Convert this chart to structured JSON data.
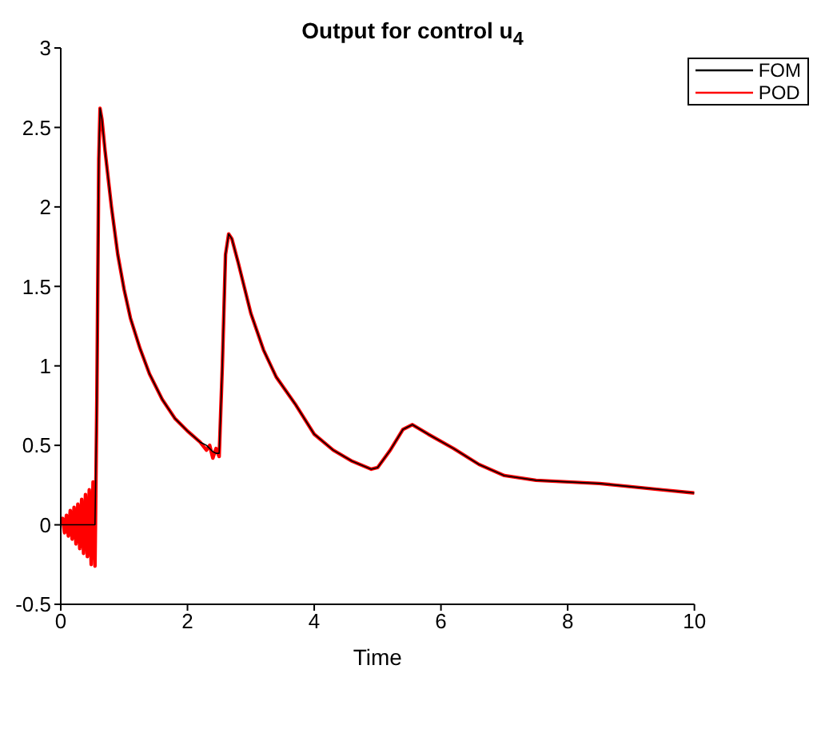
{
  "chart_data": {
    "type": "line",
    "title": "Output for control u$_{4}$",
    "xlabel": "Time",
    "x": [
      0,
      0.03,
      0.06,
      0.09,
      0.12,
      0.15,
      0.18,
      0.21,
      0.24,
      0.27,
      0.3,
      0.33,
      0.36,
      0.39,
      0.42,
      0.45,
      0.48,
      0.51,
      0.54,
      0.57,
      0.6,
      0.62,
      0.65,
      0.7,
      0.8,
      0.9,
      1.0,
      1.1,
      1.25,
      1.4,
      1.6,
      1.8,
      2.0,
      2.2,
      2.3,
      2.35,
      2.4,
      2.45,
      2.5,
      2.55,
      2.6,
      2.65,
      2.7,
      2.8,
      3.0,
      3.2,
      3.4,
      3.7,
      4.0,
      4.3,
      4.6,
      4.9,
      5.0,
      5.2,
      5.4,
      5.55,
      5.8,
      6.2,
      6.6,
      7.0,
      7.5,
      8.0,
      8.5,
      9.0,
      9.5,
      10
    ],
    "series": [
      {
        "name": "FOM",
        "color": "#000000",
        "values": [
          0,
          0,
          0,
          0,
          0,
          0,
          0,
          0,
          0,
          0,
          0,
          0,
          0,
          0,
          0,
          0,
          0,
          0,
          0,
          0.8,
          2.3,
          2.62,
          2.55,
          2.35,
          2.0,
          1.7,
          1.48,
          1.3,
          1.11,
          0.95,
          0.79,
          0.67,
          0.59,
          0.52,
          0.5,
          0.48,
          0.46,
          0.45,
          0.45,
          1.0,
          1.7,
          1.83,
          1.8,
          1.65,
          1.33,
          1.1,
          0.93,
          0.76,
          0.57,
          0.47,
          0.4,
          0.35,
          0.36,
          0.47,
          0.6,
          0.63,
          0.57,
          0.48,
          0.38,
          0.31,
          0.28,
          0.27,
          0.26,
          0.24,
          0.22,
          0.2
        ]
      },
      {
        "name": "POD",
        "color": "#ff0000",
        "values": [
          0,
          0.04,
          -0.05,
          0.06,
          -0.07,
          0.09,
          -0.09,
          0.11,
          -0.12,
          0.13,
          -0.15,
          0.16,
          -0.18,
          0.19,
          -0.2,
          0.22,
          -0.25,
          0.27,
          -0.26,
          0.8,
          2.3,
          2.62,
          2.55,
          2.35,
          2.0,
          1.7,
          1.48,
          1.3,
          1.11,
          0.95,
          0.79,
          0.67,
          0.59,
          0.52,
          0.47,
          0.5,
          0.42,
          0.48,
          0.43,
          1.0,
          1.7,
          1.83,
          1.8,
          1.65,
          1.33,
          1.1,
          0.93,
          0.76,
          0.57,
          0.47,
          0.4,
          0.35,
          0.36,
          0.47,
          0.6,
          0.63,
          0.57,
          0.48,
          0.38,
          0.31,
          0.28,
          0.27,
          0.26,
          0.24,
          0.22,
          0.2
        ]
      }
    ],
    "xlim": [
      0,
      10
    ],
    "xticks": [
      0,
      2,
      4,
      6,
      8,
      10
    ],
    "ylim": [
      -0.5,
      3
    ],
    "yticks": [
      -0.5,
      0,
      0.5,
      1,
      1.5,
      2,
      2.5,
      3
    ],
    "legend": "top right",
    "grid": false,
    "marker": "none",
    "line_style": "solid"
  }
}
